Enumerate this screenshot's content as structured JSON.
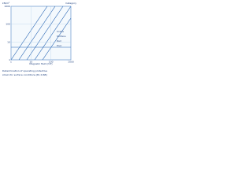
{
  "header": {
    "y_unit": "kN/m²",
    "right_label": "Category"
  },
  "left_ticks": [
    "1000",
    "100",
    "10",
    "1"
  ],
  "bottom_ticks": [
    "1",
    "10",
    "100",
    "1000"
  ],
  "line_labels": [
    "Crane",
    "Surface",
    "Rail",
    "Poor"
  ],
  "x_label": "Magnetic field (mT)",
  "caption": [
    "Determination of operating protective",
    "strain for surface conditions (B<0.6B)"
  ]
}
